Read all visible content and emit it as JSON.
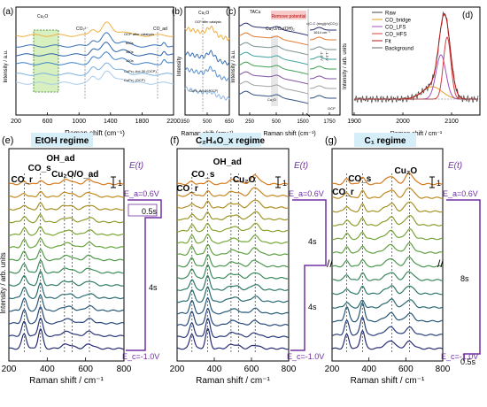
{
  "top_panels": [
    {
      "letter": "(a)",
      "ylabel": "Intensity / a.u.",
      "xlabel": "Raman shift (cm⁻¹)",
      "xlim": [
        200,
        2200
      ],
      "ticks": [
        "200",
        "600",
        "1000",
        "1400",
        "1800",
        "2200"
      ],
      "annotations": [
        "Cu₂O",
        "CO₃²⁻",
        "CO_ad",
        "OCP after catalysis",
        "600s",
        "360s",
        "120s",
        "CuPc₂-Act-30 (OCP)",
        "CuPc₂ (OCP)"
      ]
    },
    {
      "letter": "(b)",
      "ylabel": "Intensity",
      "xlabel": "Raman shift (cm⁻¹)",
      "xlim": [
        350,
        650
      ],
      "ticks": [
        "350",
        "500",
        "650"
      ],
      "annotations": [
        "Cu₂O",
        "OCP after catalysis",
        "CuPc₂-Act-30 (OCP)"
      ]
    },
    {
      "letter": "(c)",
      "ylabel": "Intensity / a.u.",
      "xlabel": "Raman shift (cm⁻¹)",
      "xlim": [
        0,
        1750
      ],
      "ticks": [
        "250",
        "500",
        "1500",
        "1750"
      ],
      "annotations": [
        "TACu",
        "Remove potential",
        "Cu₂O/Cu(OH)₂",
        "ν(C-C (ring))/ν(CO₂)",
        "1614 cm⁻¹",
        "-1.0 V",
        "-1.5 V",
        "OCP",
        "Cu₂O"
      ]
    },
    {
      "letter": "(d)",
      "ylabel": "Intensity / arb. units",
      "xlabel": "Raman shift / cm⁻¹",
      "xlim": [
        1900,
        2150
      ],
      "ticks": [
        "1900",
        "2000",
        "2100"
      ],
      "legend": [
        "Raw",
        "CO_bridge",
        "CO_LFS",
        "CO_HFS",
        "Fit",
        "Background"
      ]
    }
  ],
  "regimes": [
    {
      "letter": "(e)",
      "title_html": "EtOH regime",
      "xlabel": "Raman shift / cm⁻¹",
      "ylabel": "Intensity / arb. units",
      "xlim": [
        200,
        800
      ],
      "ticks": [
        "200",
        "400",
        "600",
        "800"
      ],
      "peak_labels": [
        "CO_r",
        "CO_s",
        "OH_ad",
        "Cu₂O/O_ad"
      ],
      "E_t": "E(t)",
      "E_a": "E_a=0.6V",
      "E_c": "E_c=-1.0V",
      "scale": "1",
      "times": [
        "0.5s",
        "4s"
      ]
    },
    {
      "letter": "(f)",
      "title_html": "C₂H₄O_x regime",
      "xlabel": "Raman shift / cm⁻¹",
      "xlim": [
        200,
        800
      ],
      "ticks": [
        "200",
        "400",
        "600",
        "800"
      ],
      "peak_labels": [
        "CO_r",
        "CO_s",
        "OH_ad",
        "Cu₂O"
      ],
      "E_t": "E(t)",
      "E_a": "E_a=0.6V",
      "E_c": "E_c=-1.0V",
      "scale": "1",
      "times": [
        "4s",
        "4s"
      ]
    },
    {
      "letter": "(g)",
      "title_html": "C₁ regime",
      "xlabel": "Raman shift / cm⁻¹",
      "xlim": [
        200,
        800
      ],
      "ticks": [
        "200",
        "400",
        "600",
        "800"
      ],
      "peak_labels": [
        "CO_r",
        "CO_s",
        "Cu₂O"
      ],
      "E_t": "E(t)",
      "E_a": "E_a=0.6V",
      "E_c": "E_c=-1.0V",
      "scale": "1",
      "times": [
        "8s",
        "0.5s"
      ]
    }
  ],
  "chart_data": [
    {
      "type": "line",
      "panel": "e",
      "x_range": [
        200,
        800
      ],
      "peaks_cm": [
        280,
        365,
        490,
        530,
        620
      ],
      "n_spectra": 14,
      "colors": [
        "#d57a1b",
        "#c18a1e",
        "#a78f23",
        "#909a2b",
        "#7ca533",
        "#66a43c",
        "#4f9a48",
        "#3c8c57",
        "#2e7c66",
        "#296b72",
        "#285978",
        "#27477a",
        "#283879",
        "#272c73"
      ]
    },
    {
      "type": "line",
      "panel": "f",
      "x_range": [
        200,
        800
      ],
      "peaks_cm": [
        280,
        365,
        490,
        530,
        620
      ],
      "n_spectra": 15,
      "colors": [
        "#d57a1b",
        "#c58620",
        "#b18e22",
        "#9b9627",
        "#88a22f",
        "#73a838",
        "#5fa142",
        "#4b954e",
        "#3b885b",
        "#2f7967",
        "#2a6a71",
        "#285977",
        "#27487a",
        "#283878",
        "#272c73"
      ]
    },
    {
      "type": "line",
      "panel": "g",
      "x_range": [
        200,
        800
      ],
      "peaks_cm": [
        280,
        365,
        525,
        620
      ],
      "n_spectra": 13,
      "colors": [
        "#d57a1b",
        "#bd8a21",
        "#a49224",
        "#8c9b2c",
        "#75a537",
        "#5fa142",
        "#4a954f",
        "#3a875c",
        "#2e7868",
        "#296871",
        "#275777",
        "#283f7a",
        "#272c73"
      ]
    }
  ]
}
